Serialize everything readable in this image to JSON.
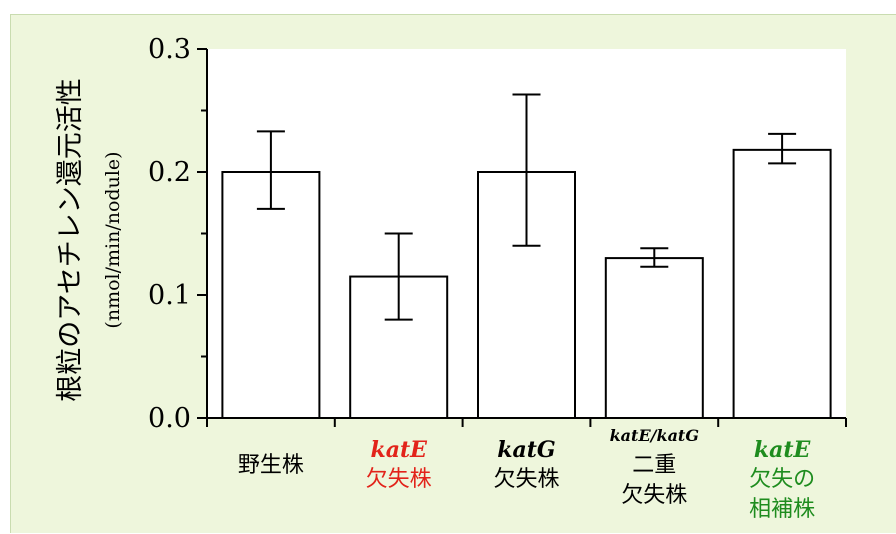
{
  "chart_data": {
    "type": "bar",
    "ylabel": "根粒のアセチレン還元活性",
    "yunit": "(nmol/min/nodule)",
    "ylim": [
      0.0,
      0.3
    ],
    "yticks": [
      "0.0",
      "0.1",
      "0.2",
      "0.3"
    ],
    "categories": [
      {
        "gene": "",
        "lines": [
          "野生株"
        ],
        "color": "#000000"
      },
      {
        "gene": "katE",
        "lines": [
          "欠失株"
        ],
        "color": "#e2231a"
      },
      {
        "gene": "katG",
        "lines": [
          "欠失株"
        ],
        "color": "#000000"
      },
      {
        "gene": "katE/katG",
        "lines": [
          "二重",
          "欠失株"
        ],
        "color": "#000000"
      },
      {
        "gene": "katE",
        "lines": [
          "欠失の",
          "相補株"
        ],
        "color": "#1e8c1e"
      }
    ],
    "values": [
      0.2,
      0.115,
      0.2,
      0.13,
      0.218
    ],
    "error_low": [
      0.17,
      0.08,
      0.14,
      0.123,
      0.207
    ],
    "error_high": [
      0.233,
      0.15,
      0.263,
      0.138,
      0.231
    ],
    "colors": {
      "background": "#eef6dc",
      "plot_area": "#ffffff",
      "bar_fill": "#ffffff",
      "stroke": "#000000"
    }
  }
}
